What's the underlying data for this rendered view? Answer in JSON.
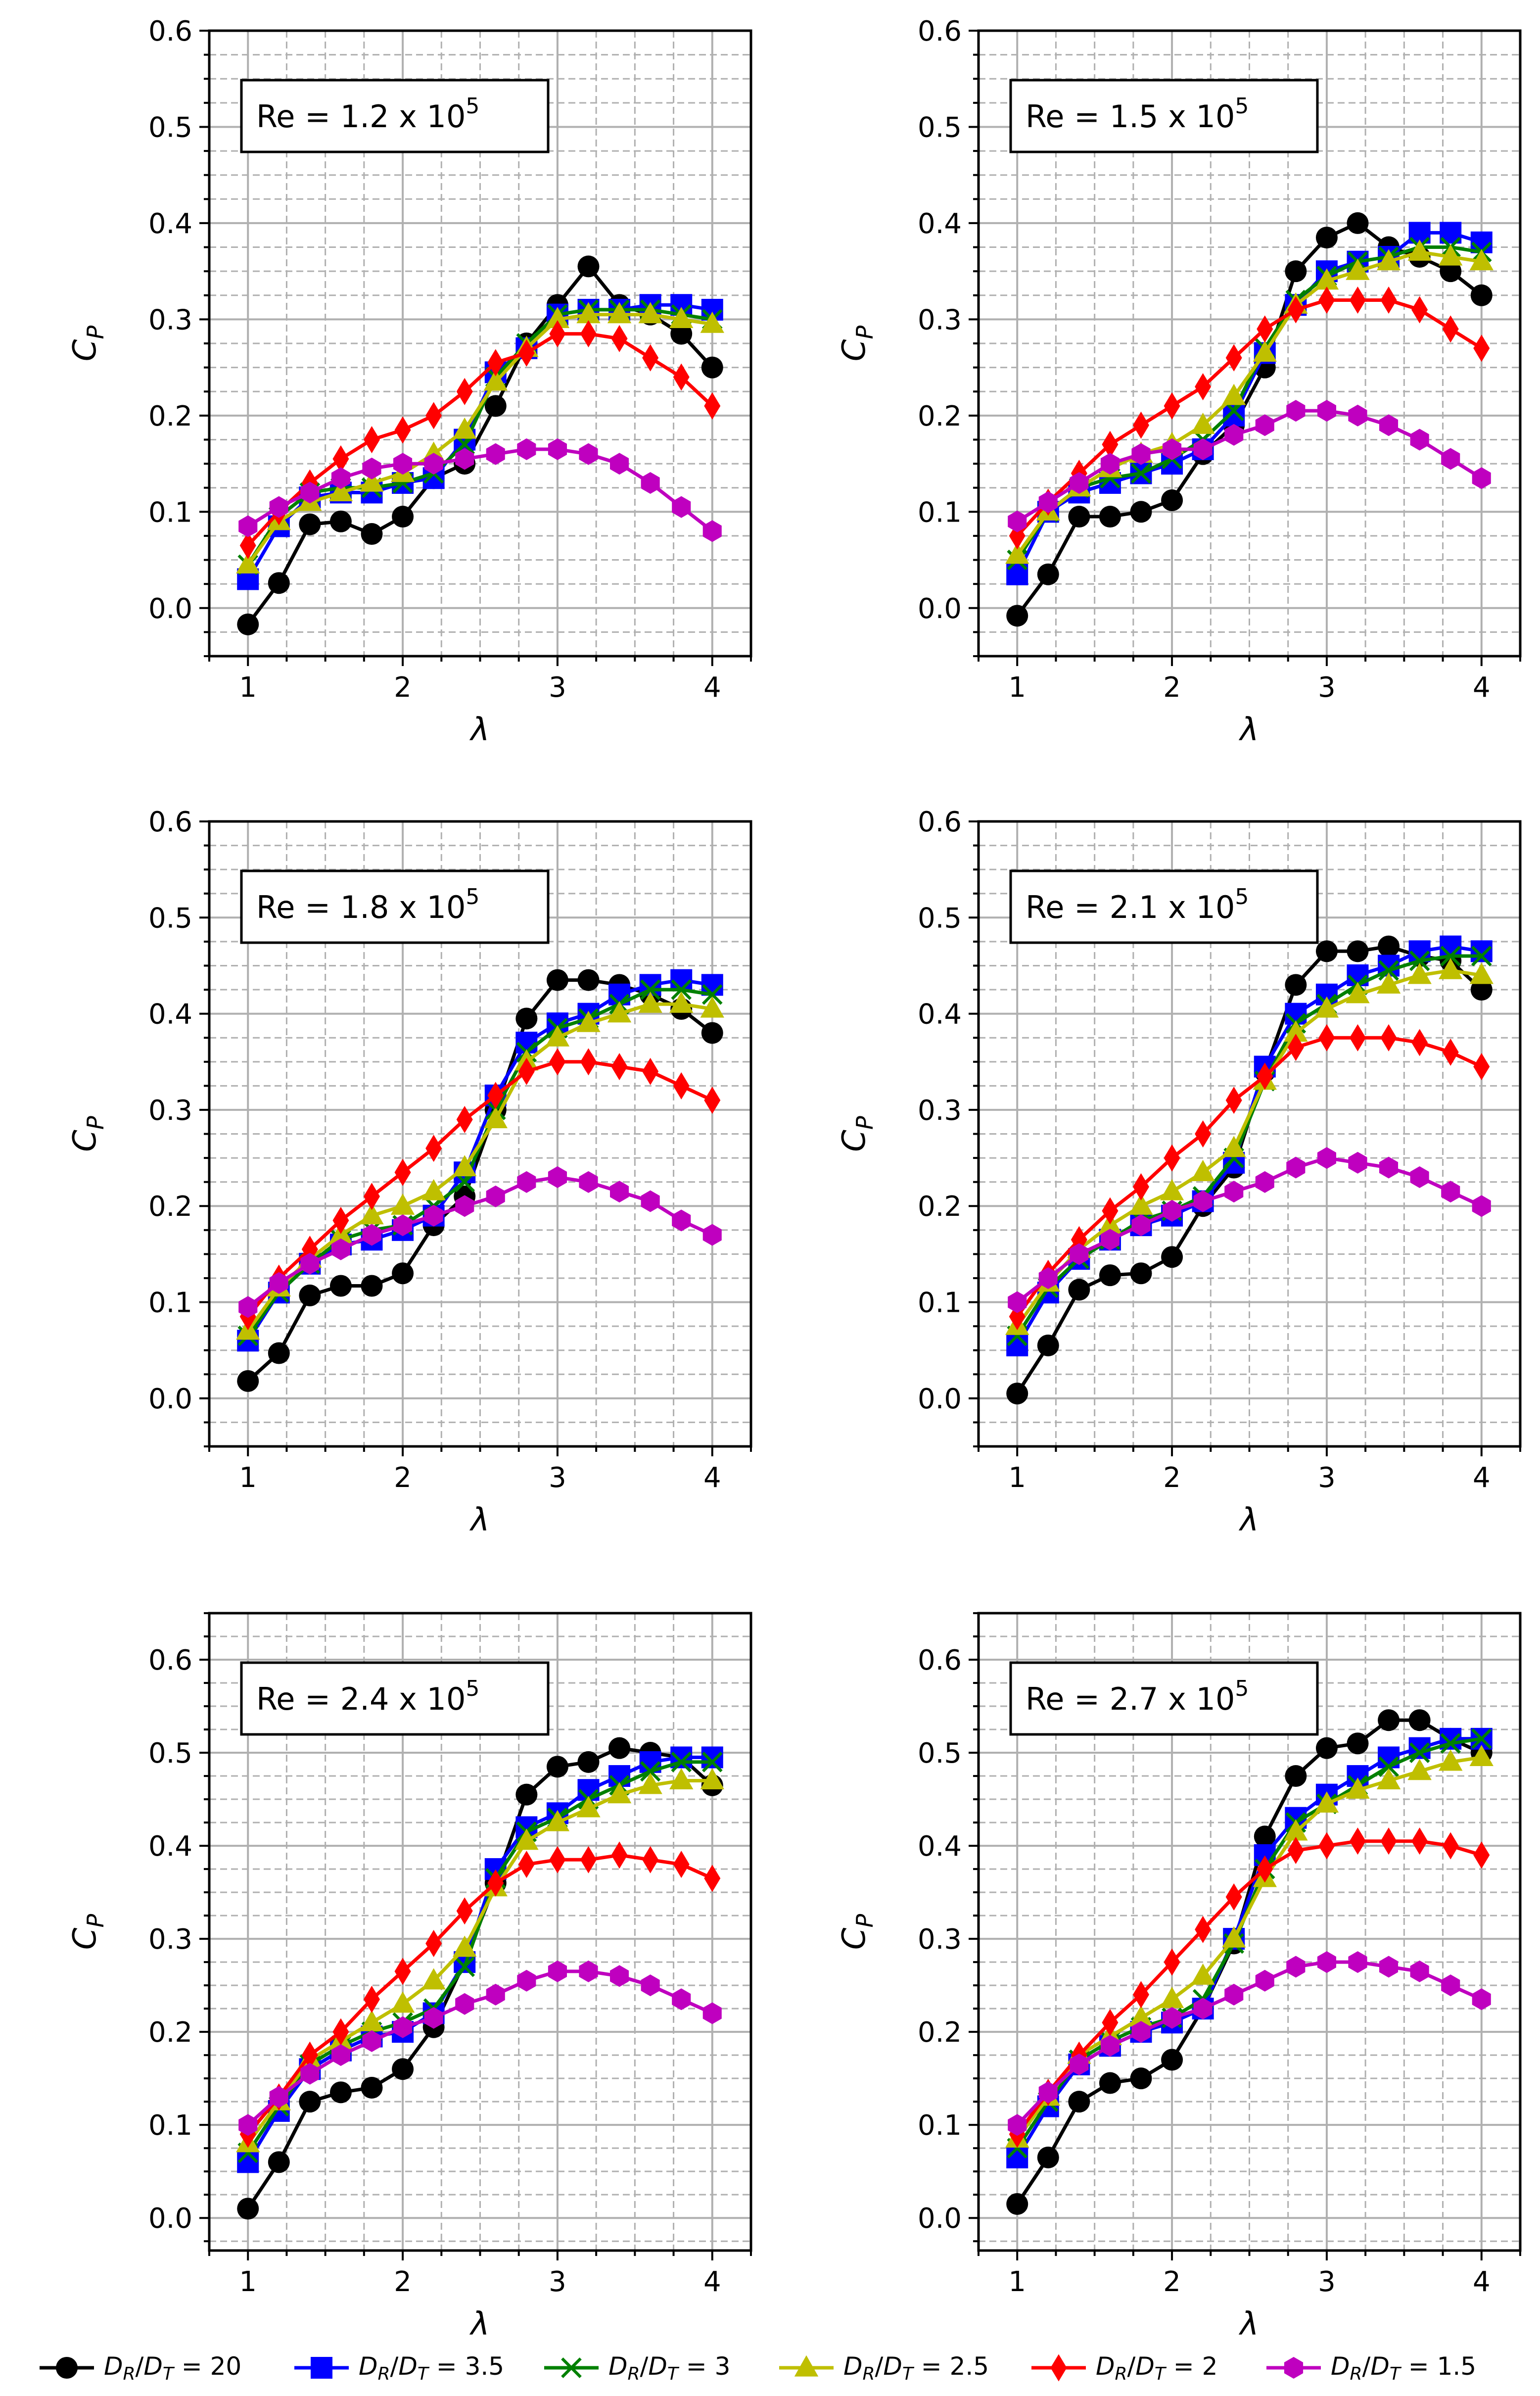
{
  "chart_data": [
    {
      "type": "line",
      "annotation": "Re = 1.2 x 10^5",
      "xlabel": "λ",
      "ylabel": "C_P",
      "xlim": [
        0.75,
        4.25
      ],
      "ylim": [
        -0.05,
        0.6
      ],
      "xticks": [
        "1",
        "2",
        "3",
        "4"
      ],
      "yticks": [
        "0.0",
        "0.1",
        "0.2",
        "0.3",
        "0.4",
        "0.5",
        "0.6"
      ],
      "grid": true,
      "x": [
        1.0,
        1.2,
        1.4,
        1.6,
        1.8,
        2.0,
        2.2,
        2.4,
        2.6,
        2.8,
        3.0,
        3.2,
        3.4,
        3.6,
        3.8,
        4.0
      ],
      "series": [
        {
          "name": "D_R/D_T = 20",
          "values": [
            -0.017,
            0.026,
            0.087,
            0.09,
            0.077,
            0.095,
            0.135,
            0.15,
            0.21,
            0.275,
            0.315,
            0.355,
            0.315,
            0.305,
            0.285,
            0.25
          ]
        },
        {
          "name": "D_R/D_T = 3.5",
          "values": [
            0.03,
            0.085,
            0.115,
            0.12,
            0.12,
            0.13,
            0.135,
            0.175,
            0.245,
            0.27,
            0.305,
            0.31,
            0.31,
            0.315,
            0.315,
            0.31
          ]
        },
        {
          "name": "D_R/D_T = 3",
          "values": [
            0.045,
            0.095,
            0.12,
            0.125,
            0.125,
            0.13,
            0.14,
            0.17,
            0.24,
            0.275,
            0.305,
            0.31,
            0.31,
            0.31,
            0.305,
            0.3
          ]
        },
        {
          "name": "D_R/D_T = 2.5",
          "values": [
            0.045,
            0.09,
            0.11,
            0.12,
            0.13,
            0.14,
            0.16,
            0.185,
            0.235,
            0.27,
            0.3,
            0.305,
            0.305,
            0.305,
            0.3,
            0.295
          ]
        },
        {
          "name": "D_R/D_T = 2",
          "values": [
            0.065,
            0.1,
            0.13,
            0.155,
            0.175,
            0.185,
            0.2,
            0.225,
            0.255,
            0.265,
            0.285,
            0.285,
            0.28,
            0.26,
            0.24,
            0.21
          ]
        },
        {
          "name": "D_R/D_T = 1.5",
          "values": [
            0.085,
            0.105,
            0.12,
            0.135,
            0.145,
            0.15,
            0.15,
            0.155,
            0.16,
            0.165,
            0.165,
            0.16,
            0.15,
            0.13,
            0.105,
            0.08
          ]
        }
      ]
    },
    {
      "type": "line",
      "annotation": "Re = 1.5 x 10^5",
      "xlabel": "λ",
      "ylabel": "C_P",
      "xlim": [
        0.75,
        4.25
      ],
      "ylim": [
        -0.05,
        0.6
      ],
      "xticks": [
        "1",
        "2",
        "3",
        "4"
      ],
      "yticks": [
        "0.0",
        "0.1",
        "0.2",
        "0.3",
        "0.4",
        "0.5",
        "0.6"
      ],
      "grid": true,
      "x": [
        1.0,
        1.2,
        1.4,
        1.6,
        1.8,
        2.0,
        2.2,
        2.4,
        2.6,
        2.8,
        3.0,
        3.2,
        3.4,
        3.6,
        3.8,
        4.0
      ],
      "series": [
        {
          "name": "D_R/D_T = 20",
          "values": [
            -0.008,
            0.035,
            0.095,
            0.095,
            0.1,
            0.112,
            0.16,
            0.19,
            0.25,
            0.35,
            0.385,
            0.4,
            0.375,
            0.365,
            0.35,
            0.325
          ]
        },
        {
          "name": "D_R/D_T = 3.5",
          "values": [
            0.035,
            0.1,
            0.12,
            0.13,
            0.14,
            0.15,
            0.165,
            0.2,
            0.265,
            0.315,
            0.35,
            0.36,
            0.365,
            0.39,
            0.39,
            0.38
          ]
        },
        {
          "name": "D_R/D_T = 3",
          "values": [
            0.05,
            0.1,
            0.125,
            0.135,
            0.14,
            0.155,
            0.175,
            0.205,
            0.27,
            0.32,
            0.345,
            0.36,
            0.365,
            0.375,
            0.375,
            0.37
          ]
        },
        {
          "name": "D_R/D_T = 2.5",
          "values": [
            0.055,
            0.1,
            0.125,
            0.145,
            0.16,
            0.17,
            0.19,
            0.22,
            0.265,
            0.315,
            0.34,
            0.35,
            0.36,
            0.37,
            0.365,
            0.36
          ]
        },
        {
          "name": "D_R/D_T = 2",
          "values": [
            0.075,
            0.11,
            0.14,
            0.17,
            0.19,
            0.21,
            0.23,
            0.26,
            0.29,
            0.31,
            0.32,
            0.32,
            0.32,
            0.31,
            0.29,
            0.27
          ]
        },
        {
          "name": "D_R/D_T = 1.5",
          "values": [
            0.09,
            0.11,
            0.13,
            0.15,
            0.16,
            0.165,
            0.165,
            0.18,
            0.19,
            0.205,
            0.205,
            0.2,
            0.19,
            0.175,
            0.155,
            0.135
          ]
        }
      ]
    },
    {
      "type": "line",
      "annotation": "Re = 1.8 x 10^5",
      "xlabel": "λ",
      "ylabel": "C_P",
      "xlim": [
        0.75,
        4.25
      ],
      "ylim": [
        -0.05,
        0.6
      ],
      "xticks": [
        "1",
        "2",
        "3",
        "4"
      ],
      "yticks": [
        "0.0",
        "0.1",
        "0.2",
        "0.3",
        "0.4",
        "0.5",
        "0.6"
      ],
      "grid": true,
      "x": [
        1.0,
        1.2,
        1.4,
        1.6,
        1.8,
        2.0,
        2.2,
        2.4,
        2.6,
        2.8,
        3.0,
        3.2,
        3.4,
        3.6,
        3.8,
        4.0
      ],
      "series": [
        {
          "name": "D_R/D_T = 20",
          "values": [
            0.018,
            0.047,
            0.107,
            0.117,
            0.117,
            0.13,
            0.18,
            0.21,
            0.3,
            0.395,
            0.435,
            0.435,
            0.43,
            0.42,
            0.405,
            0.38
          ]
        },
        {
          "name": "D_R/D_T = 3.5",
          "values": [
            0.06,
            0.11,
            0.14,
            0.16,
            0.165,
            0.175,
            0.19,
            0.235,
            0.315,
            0.37,
            0.39,
            0.4,
            0.42,
            0.43,
            0.435,
            0.43
          ]
        },
        {
          "name": "D_R/D_T = 3",
          "values": [
            0.065,
            0.11,
            0.14,
            0.165,
            0.175,
            0.18,
            0.2,
            0.225,
            0.3,
            0.36,
            0.385,
            0.395,
            0.41,
            0.425,
            0.425,
            0.42
          ]
        },
        {
          "name": "D_R/D_T = 2.5",
          "values": [
            0.07,
            0.115,
            0.145,
            0.17,
            0.19,
            0.2,
            0.215,
            0.24,
            0.29,
            0.35,
            0.375,
            0.39,
            0.4,
            0.41,
            0.41,
            0.405
          ]
        },
        {
          "name": "D_R/D_T = 2",
          "values": [
            0.085,
            0.125,
            0.155,
            0.185,
            0.21,
            0.235,
            0.26,
            0.29,
            0.315,
            0.34,
            0.35,
            0.35,
            0.345,
            0.34,
            0.325,
            0.31
          ]
        },
        {
          "name": "D_R/D_T = 1.5",
          "values": [
            0.095,
            0.12,
            0.14,
            0.155,
            0.17,
            0.18,
            0.19,
            0.2,
            0.21,
            0.225,
            0.23,
            0.225,
            0.215,
            0.205,
            0.185,
            0.17
          ]
        }
      ]
    },
    {
      "type": "line",
      "annotation": "Re = 2.1 x 10^5",
      "xlabel": "λ",
      "ylabel": "C_P",
      "xlim": [
        0.75,
        4.25
      ],
      "ylim": [
        -0.05,
        0.6
      ],
      "xticks": [
        "1",
        "2",
        "3",
        "4"
      ],
      "yticks": [
        "0.0",
        "0.1",
        "0.2",
        "0.3",
        "0.4",
        "0.5",
        "0.6"
      ],
      "grid": true,
      "x": [
        1.0,
        1.2,
        1.4,
        1.6,
        1.8,
        2.0,
        2.2,
        2.4,
        2.6,
        2.8,
        3.0,
        3.2,
        3.4,
        3.6,
        3.8,
        4.0
      ],
      "series": [
        {
          "name": "D_R/D_T = 20",
          "values": [
            0.005,
            0.055,
            0.113,
            0.128,
            0.13,
            0.147,
            0.2,
            0.24,
            0.34,
            0.43,
            0.465,
            0.465,
            0.47,
            0.46,
            0.455,
            0.425
          ]
        },
        {
          "name": "D_R/D_T = 3.5",
          "values": [
            0.055,
            0.11,
            0.145,
            0.165,
            0.18,
            0.19,
            0.205,
            0.245,
            0.345,
            0.4,
            0.42,
            0.44,
            0.45,
            0.465,
            0.47,
            0.465
          ]
        },
        {
          "name": "D_R/D_T = 3",
          "values": [
            0.065,
            0.115,
            0.145,
            0.165,
            0.185,
            0.195,
            0.21,
            0.25,
            0.33,
            0.39,
            0.41,
            0.43,
            0.445,
            0.455,
            0.46,
            0.46
          ]
        },
        {
          "name": "D_R/D_T = 2.5",
          "values": [
            0.075,
            0.12,
            0.155,
            0.18,
            0.2,
            0.215,
            0.235,
            0.26,
            0.33,
            0.38,
            0.405,
            0.42,
            0.43,
            0.44,
            0.445,
            0.44
          ]
        },
        {
          "name": "D_R/D_T = 2",
          "values": [
            0.085,
            0.13,
            0.165,
            0.195,
            0.22,
            0.25,
            0.275,
            0.31,
            0.335,
            0.365,
            0.375,
            0.375,
            0.375,
            0.37,
            0.36,
            0.345
          ]
        },
        {
          "name": "D_R/D_T = 1.5",
          "values": [
            0.1,
            0.125,
            0.15,
            0.165,
            0.18,
            0.195,
            0.205,
            0.215,
            0.225,
            0.24,
            0.25,
            0.245,
            0.24,
            0.23,
            0.215,
            0.2
          ]
        }
      ]
    },
    {
      "type": "line",
      "annotation": "Re = 2.4 x 10^5",
      "xlabel": "λ",
      "ylabel": "C_P",
      "xlim": [
        0.75,
        4.25
      ],
      "ylim": [
        -0.035,
        0.65
      ],
      "xticks": [
        "1",
        "2",
        "3",
        "4"
      ],
      "yticks": [
        "0.0",
        "0.1",
        "0.2",
        "0.3",
        "0.4",
        "0.5",
        "0.6"
      ],
      "grid": true,
      "x": [
        1.0,
        1.2,
        1.4,
        1.6,
        1.8,
        2.0,
        2.2,
        2.4,
        2.6,
        2.8,
        3.0,
        3.2,
        3.4,
        3.6,
        3.8,
        4.0
      ],
      "series": [
        {
          "name": "D_R/D_T = 20",
          "values": [
            0.01,
            0.06,
            0.125,
            0.135,
            0.14,
            0.16,
            0.205,
            0.275,
            0.36,
            0.455,
            0.485,
            0.49,
            0.505,
            0.5,
            0.495,
            0.465
          ]
        },
        {
          "name": "D_R/D_T = 3.5",
          "values": [
            0.06,
            0.115,
            0.16,
            0.18,
            0.195,
            0.2,
            0.22,
            0.275,
            0.375,
            0.42,
            0.435,
            0.46,
            0.475,
            0.49,
            0.495,
            0.495
          ]
        },
        {
          "name": "D_R/D_T = 3",
          "values": [
            0.07,
            0.12,
            0.165,
            0.185,
            0.2,
            0.21,
            0.225,
            0.27,
            0.365,
            0.415,
            0.43,
            0.45,
            0.465,
            0.48,
            0.49,
            0.49
          ]
        },
        {
          "name": "D_R/D_T = 2.5",
          "values": [
            0.08,
            0.125,
            0.17,
            0.19,
            0.21,
            0.23,
            0.255,
            0.29,
            0.355,
            0.405,
            0.425,
            0.44,
            0.455,
            0.465,
            0.47,
            0.47
          ]
        },
        {
          "name": "D_R/D_T = 2",
          "values": [
            0.09,
            0.13,
            0.175,
            0.2,
            0.235,
            0.265,
            0.295,
            0.33,
            0.36,
            0.38,
            0.385,
            0.385,
            0.39,
            0.385,
            0.38,
            0.365
          ]
        },
        {
          "name": "D_R/D_T = 1.5",
          "values": [
            0.1,
            0.13,
            0.155,
            0.175,
            0.19,
            0.205,
            0.215,
            0.23,
            0.24,
            0.255,
            0.265,
            0.265,
            0.26,
            0.25,
            0.235,
            0.22
          ]
        }
      ]
    },
    {
      "type": "line",
      "annotation": "Re = 2.7 x 10^5",
      "xlabel": "λ",
      "ylabel": "C_P",
      "xlim": [
        0.75,
        4.25
      ],
      "ylim": [
        -0.035,
        0.65
      ],
      "xticks": [
        "1",
        "2",
        "3",
        "4"
      ],
      "yticks": [
        "0.0",
        "0.1",
        "0.2",
        "0.3",
        "0.4",
        "0.5",
        "0.6"
      ],
      "grid": true,
      "x": [
        1.0,
        1.2,
        1.4,
        1.6,
        1.8,
        2.0,
        2.2,
        2.4,
        2.6,
        2.8,
        3.0,
        3.2,
        3.4,
        3.6,
        3.8,
        4.0
      ],
      "series": [
        {
          "name": "D_R/D_T = 20",
          "values": [
            0.015,
            0.065,
            0.125,
            0.145,
            0.15,
            0.17,
            0.225,
            0.295,
            0.41,
            0.475,
            0.505,
            0.51,
            0.535,
            0.535,
            0.515,
            0.5
          ]
        },
        {
          "name": "D_R/D_T = 3.5",
          "values": [
            0.065,
            0.12,
            0.165,
            0.185,
            0.2,
            0.21,
            0.225,
            0.3,
            0.39,
            0.43,
            0.455,
            0.475,
            0.495,
            0.505,
            0.515,
            0.515
          ]
        },
        {
          "name": "D_R/D_T = 3",
          "values": [
            0.075,
            0.125,
            0.17,
            0.19,
            0.205,
            0.215,
            0.235,
            0.295,
            0.375,
            0.425,
            0.445,
            0.465,
            0.485,
            0.5,
            0.51,
            0.515
          ]
        },
        {
          "name": "D_R/D_T = 2.5",
          "values": [
            0.085,
            0.13,
            0.175,
            0.195,
            0.215,
            0.235,
            0.26,
            0.3,
            0.365,
            0.415,
            0.445,
            0.46,
            0.47,
            0.48,
            0.49,
            0.495
          ]
        },
        {
          "name": "D_R/D_T = 2",
          "values": [
            0.09,
            0.135,
            0.175,
            0.21,
            0.24,
            0.275,
            0.31,
            0.345,
            0.375,
            0.395,
            0.4,
            0.405,
            0.405,
            0.405,
            0.4,
            0.39
          ]
        },
        {
          "name": "D_R/D_T = 1.5",
          "values": [
            0.1,
            0.135,
            0.165,
            0.185,
            0.2,
            0.215,
            0.225,
            0.24,
            0.255,
            0.27,
            0.275,
            0.275,
            0.27,
            0.265,
            0.25,
            0.235
          ]
        }
      ]
    }
  ],
  "legend": {
    "placement": "bottom",
    "entries": [
      {
        "label": "D_R/D_T = 20",
        "color": "#000000",
        "marker": "circle"
      },
      {
        "label": "D_R/D_T = 3.5",
        "color": "#0000ff",
        "marker": "square"
      },
      {
        "label": "D_R/D_T = 3",
        "color": "#008000",
        "marker": "x"
      },
      {
        "label": "D_R/D_T = 2.5",
        "color": "#bfbf00",
        "marker": "triangle"
      },
      {
        "label": "D_R/D_T = 2",
        "color": "#ff0000",
        "marker": "diamond"
      },
      {
        "label": "D_R/D_T = 1.5",
        "color": "#bf00bf",
        "marker": "hexagon"
      }
    ]
  }
}
